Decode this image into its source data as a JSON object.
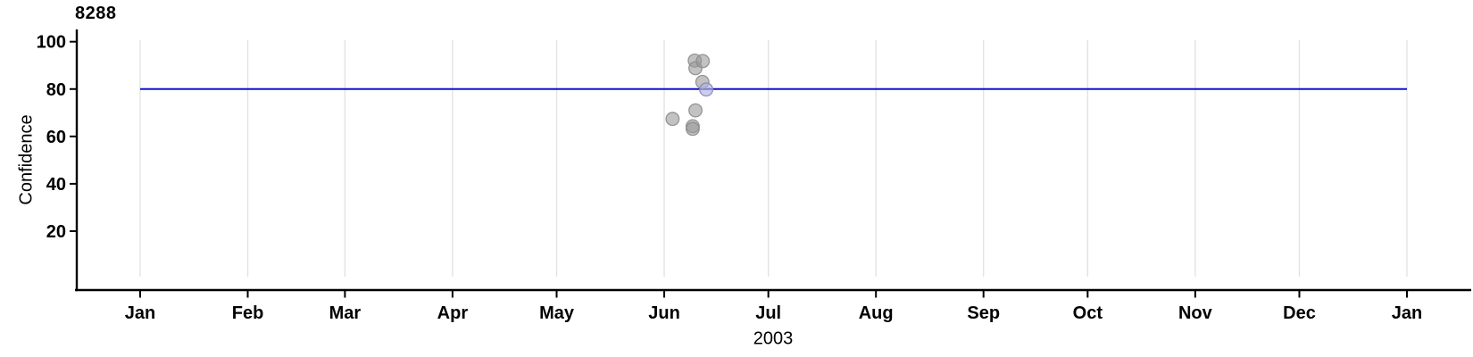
{
  "chart_data": {
    "type": "scatter",
    "title": "8288",
    "xlabel": "2003",
    "ylabel": "Confidence",
    "x_axis": {
      "unit": "date",
      "year_label": "2003",
      "tick_labels": [
        "Jan",
        "Feb",
        "Mar",
        "Apr",
        "May",
        "Jun",
        "Jul",
        "Aug",
        "Sep",
        "Oct",
        "Nov",
        "Dec",
        "Jan"
      ],
      "month_start_days": [
        0,
        31,
        59,
        90,
        120,
        151,
        181,
        212,
        243,
        273,
        304,
        334,
        365
      ],
      "range_days": [
        0,
        365
      ]
    },
    "y_axis": {
      "label": "Confidence",
      "ticks": [
        100,
        80,
        60,
        40,
        20
      ],
      "range": [
        -5,
        105
      ]
    },
    "grid": "vertical-monthly",
    "legend_position": "none",
    "reference_line": {
      "value": 80,
      "span_days": [
        0,
        365
      ],
      "color": "#1111cc"
    },
    "points": [
      {
        "date_label": "Jun 3",
        "day": 153.4,
        "confidence": 67.4,
        "highlight": false
      },
      {
        "date_label": "Jun 9",
        "day": 159.2,
        "confidence": 64.3,
        "highlight": false
      },
      {
        "date_label": "Jun 9",
        "day": 159.2,
        "confidence": 63.2,
        "highlight": false
      },
      {
        "date_label": "Jun 10",
        "day": 159.8,
        "confidence": 92.0,
        "highlight": false
      },
      {
        "date_label": "Jun 10",
        "day": 160.0,
        "confidence": 88.8,
        "highlight": false
      },
      {
        "date_label": "Jun 10",
        "day": 160.0,
        "confidence": 71.0,
        "highlight": false
      },
      {
        "date_label": "Jun 12",
        "day": 162.0,
        "confidence": 83.0,
        "highlight": false
      },
      {
        "date_label": "Jun 12",
        "day": 162.1,
        "confidence": 91.8,
        "highlight": false
      },
      {
        "date_label": "Jun 13",
        "day": 163.1,
        "confidence": 79.8,
        "highlight": true
      }
    ],
    "style": {
      "point_fill": "#999999",
      "point_stroke": "#8c8c8c",
      "highlight_fill": "#b0b0e0",
      "highlight_stroke": "#8585bb",
      "grid_color": "#e3e3e3",
      "axis_color": "#000000"
    }
  }
}
